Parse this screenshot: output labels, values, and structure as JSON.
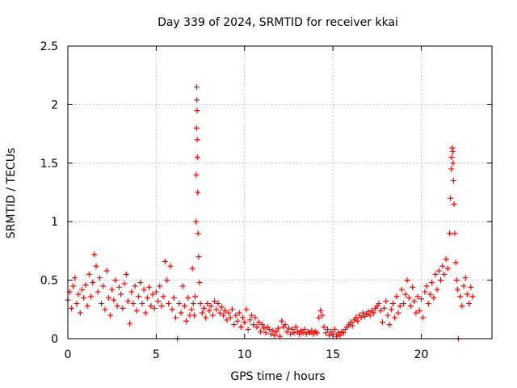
{
  "chart_data": {
    "type": "scatter",
    "title": "Day 339 of 2024, SRMTID for receiver kkai",
    "xlabel": "GPS time / hours",
    "ylabel": "SRMTID / TECUs",
    "xlim": [
      0,
      24
    ],
    "ylim": [
      0,
      2.5
    ],
    "xticks": [
      0,
      5,
      10,
      15,
      20
    ],
    "yticks": [
      0,
      0.5,
      1,
      1.5,
      2,
      2.5
    ],
    "xtick_labels": [
      "0",
      "5",
      "10",
      "15",
      "20"
    ],
    "ytick_labels": [
      "0",
      "0.5",
      "1",
      "1.5",
      "2",
      "2.5"
    ],
    "grid": true,
    "marker": "+",
    "series": [
      {
        "name": "kkai",
        "color": "#ff0000",
        "points": [
          [
            0.0,
            0.33
          ],
          [
            0.1,
            0.4
          ],
          [
            0.2,
            0.26
          ],
          [
            0.3,
            0.45
          ],
          [
            0.4,
            0.52
          ],
          [
            0.5,
            0.3
          ],
          [
            0.6,
            0.38
          ],
          [
            0.7,
            0.22
          ],
          [
            0.8,
            0.42
          ],
          [
            0.9,
            0.35
          ],
          [
            1.0,
            0.46
          ],
          [
            1.1,
            0.28
          ],
          [
            1.2,
            0.55
          ],
          [
            1.3,
            0.36
          ],
          [
            1.4,
            0.48
          ],
          [
            1.5,
            0.72
          ],
          [
            1.6,
            0.62
          ],
          [
            1.7,
            0.4
          ],
          [
            1.8,
            0.52
          ],
          [
            1.9,
            0.3
          ],
          [
            2.0,
            0.45
          ],
          [
            2.1,
            0.25
          ],
          [
            2.2,
            0.58
          ],
          [
            2.3,
            0.35
          ],
          [
            2.4,
            0.2
          ],
          [
            2.5,
            0.42
          ],
          [
            2.6,
            0.33
          ],
          [
            2.7,
            0.5
          ],
          [
            2.8,
            0.28
          ],
          [
            2.9,
            0.44
          ],
          [
            3.0,
            0.38
          ],
          [
            3.1,
            0.26
          ],
          [
            3.2,
            0.47
          ],
          [
            3.3,
            0.55
          ],
          [
            3.4,
            0.32
          ],
          [
            3.5,
            0.13
          ],
          [
            3.6,
            0.4
          ],
          [
            3.7,
            0.3
          ],
          [
            3.8,
            0.45
          ],
          [
            3.9,
            0.24
          ],
          [
            4.0,
            0.36
          ],
          [
            4.1,
            0.48
          ],
          [
            4.2,
            0.3
          ],
          [
            4.3,
            0.42
          ],
          [
            4.4,
            0.22
          ],
          [
            4.5,
            0.35
          ],
          [
            4.6,
            0.44
          ],
          [
            4.7,
            0.28
          ],
          [
            4.8,
            0.38
          ],
          [
            4.9,
            0.26
          ],
          [
            5.0,
            0.4
          ],
          [
            5.1,
            0.32
          ],
          [
            5.2,
            0.45
          ],
          [
            5.3,
            0.28
          ],
          [
            5.4,
            0.36
          ],
          [
            5.5,
            0.66
          ],
          [
            5.6,
            0.5
          ],
          [
            5.7,
            0.3
          ],
          [
            5.8,
            0.62
          ],
          [
            5.9,
            0.25
          ],
          [
            6.0,
            0.35
          ],
          [
            6.1,
            0.18
          ],
          [
            6.2,
            0.0
          ],
          [
            6.3,
            0.3
          ],
          [
            6.4,
            0.22
          ],
          [
            6.5,
            0.45
          ],
          [
            6.6,
            0.28
          ],
          [
            6.7,
            0.15
          ],
          [
            6.8,
            0.35
          ],
          [
            6.9,
            0.2
          ],
          [
            7.0,
            0.25
          ],
          [
            7.05,
            0.6
          ],
          [
            7.1,
            0.3
          ],
          [
            7.15,
            0.2
          ],
          [
            7.2,
            0.36
          ],
          [
            7.25,
            1.0
          ],
          [
            7.27,
            1.4
          ],
          [
            7.28,
            1.8
          ],
          [
            7.29,
            2.15
          ],
          [
            7.3,
            2.04
          ],
          [
            7.31,
            1.95
          ],
          [
            7.32,
            1.7
          ],
          [
            7.33,
            1.55
          ],
          [
            7.35,
            1.25
          ],
          [
            7.37,
            0.9
          ],
          [
            7.4,
            0.7
          ],
          [
            7.45,
            0.48
          ],
          [
            7.5,
            0.3
          ],
          [
            7.6,
            0.22
          ],
          [
            7.7,
            0.26
          ],
          [
            7.8,
            0.18
          ],
          [
            7.9,
            0.3
          ],
          [
            8.0,
            0.24
          ],
          [
            8.1,
            0.28
          ],
          [
            8.2,
            0.2
          ],
          [
            8.3,
            0.32
          ],
          [
            8.4,
            0.25
          ],
          [
            8.5,
            0.3
          ],
          [
            8.6,
            0.22
          ],
          [
            8.7,
            0.27
          ],
          [
            8.8,
            0.2
          ],
          [
            8.9,
            0.24
          ],
          [
            9.0,
            0.16
          ],
          [
            9.1,
            0.22
          ],
          [
            9.2,
            0.18
          ],
          [
            9.3,
            0.25
          ],
          [
            9.4,
            0.12
          ],
          [
            9.5,
            0.2
          ],
          [
            9.6,
            0.15
          ],
          [
            9.7,
            0.22
          ],
          [
            9.8,
            0.1
          ],
          [
            9.9,
            0.18
          ],
          [
            10.0,
            0.14
          ],
          [
            10.1,
            0.25
          ],
          [
            10.2,
            0.08
          ],
          [
            10.3,
            0.16
          ],
          [
            10.4,
            0.2
          ],
          [
            10.5,
            0.12
          ],
          [
            10.6,
            0.18
          ],
          [
            10.7,
            0.1
          ],
          [
            10.8,
            0.14
          ],
          [
            10.9,
            0.06
          ],
          [
            11.0,
            0.12
          ],
          [
            11.1,
            0.09
          ],
          [
            11.2,
            0.05
          ],
          [
            11.3,
            0.1
          ],
          [
            11.4,
            0.08
          ],
          [
            11.5,
            0.04
          ],
          [
            11.6,
            0.07
          ],
          [
            11.7,
            0.03
          ],
          [
            11.8,
            0.06
          ],
          [
            11.9,
            0.09
          ],
          [
            12.0,
            0.02
          ],
          [
            12.1,
            0.15
          ],
          [
            12.2,
            0.1
          ],
          [
            12.3,
            0.12
          ],
          [
            12.4,
            0.06
          ],
          [
            12.5,
            0.09
          ],
          [
            12.6,
            0.04
          ],
          [
            12.7,
            0.08
          ],
          [
            12.8,
            0.05
          ],
          [
            12.9,
            0.1
          ],
          [
            13.0,
            0.06
          ],
          [
            13.1,
            0.04
          ],
          [
            13.2,
            0.07
          ],
          [
            13.3,
            0.05
          ],
          [
            13.4,
            0.08
          ],
          [
            13.5,
            0.04
          ],
          [
            13.6,
            0.06
          ],
          [
            13.7,
            0.05
          ],
          [
            13.8,
            0.07
          ],
          [
            13.9,
            0.04
          ],
          [
            14.0,
            0.06
          ],
          [
            14.1,
            0.05
          ],
          [
            14.2,
            0.18
          ],
          [
            14.3,
            0.24
          ],
          [
            14.4,
            0.2
          ],
          [
            14.5,
            0.1
          ],
          [
            14.6,
            0.05
          ],
          [
            14.7,
            0.08
          ],
          [
            14.8,
            0.03
          ],
          [
            14.9,
            0.06
          ],
          [
            15.0,
            0.04
          ],
          [
            15.1,
            0.08
          ],
          [
            15.2,
            0.02
          ],
          [
            15.3,
            0.05
          ],
          [
            15.4,
            0.03
          ],
          [
            15.5,
            0.06
          ],
          [
            15.6,
            0.05
          ],
          [
            15.7,
            0.08
          ],
          [
            15.8,
            0.1
          ],
          [
            15.9,
            0.12
          ],
          [
            16.0,
            0.14
          ],
          [
            16.1,
            0.11
          ],
          [
            16.2,
            0.16
          ],
          [
            16.3,
            0.18
          ],
          [
            16.4,
            0.15
          ],
          [
            16.5,
            0.2
          ],
          [
            16.6,
            0.18
          ],
          [
            16.7,
            0.22
          ],
          [
            16.8,
            0.19
          ],
          [
            16.9,
            0.21
          ],
          [
            17.0,
            0.23
          ],
          [
            17.1,
            0.2
          ],
          [
            17.2,
            0.24
          ],
          [
            17.3,
            0.22
          ],
          [
            17.4,
            0.26
          ],
          [
            17.5,
            0.28
          ],
          [
            17.6,
            0.3
          ],
          [
            17.7,
            0.24
          ],
          [
            17.8,
            0.14
          ],
          [
            17.9,
            0.26
          ],
          [
            18.0,
            0.32
          ],
          [
            18.1,
            0.2
          ],
          [
            18.2,
            0.12
          ],
          [
            18.3,
            0.25
          ],
          [
            18.4,
            0.3
          ],
          [
            18.5,
            0.18
          ],
          [
            18.6,
            0.36
          ],
          [
            18.7,
            0.22
          ],
          [
            18.8,
            0.28
          ],
          [
            18.9,
            0.42
          ],
          [
            19.0,
            0.3
          ],
          [
            19.1,
            0.38
          ],
          [
            19.2,
            0.5
          ],
          [
            19.3,
            0.35
          ],
          [
            19.4,
            0.28
          ],
          [
            19.5,
            0.44
          ],
          [
            19.6,
            0.32
          ],
          [
            19.7,
            0.22
          ],
          [
            19.8,
            0.36
          ],
          [
            19.9,
            0.24
          ],
          [
            20.0,
            0.34
          ],
          [
            20.1,
            0.18
          ],
          [
            20.2,
            0.4
          ],
          [
            20.3,
            0.45
          ],
          [
            20.4,
            0.3
          ],
          [
            20.5,
            0.38
          ],
          [
            20.6,
            0.48
          ],
          [
            20.7,
            0.35
          ],
          [
            20.8,
            0.55
          ],
          [
            20.9,
            0.42
          ],
          [
            21.0,
            0.58
          ],
          [
            21.1,
            0.5
          ],
          [
            21.2,
            0.62
          ],
          [
            21.3,
            0.55
          ],
          [
            21.4,
            0.68
          ],
          [
            21.5,
            0.6
          ],
          [
            21.6,
            0.9
          ],
          [
            21.65,
            1.2
          ],
          [
            21.7,
            1.45
          ],
          [
            21.72,
            1.55
          ],
          [
            21.75,
            1.63
          ],
          [
            21.78,
            1.6
          ],
          [
            21.8,
            1.5
          ],
          [
            21.82,
            1.35
          ],
          [
            21.85,
            1.15
          ],
          [
            21.9,
            0.9
          ],
          [
            21.95,
            0.65
          ],
          [
            22.0,
            0.5
          ],
          [
            22.05,
            0.42
          ],
          [
            22.1,
            0.0
          ],
          [
            22.2,
            0.36
          ],
          [
            22.3,
            0.28
          ],
          [
            22.4,
            0.45
          ],
          [
            22.5,
            0.52
          ],
          [
            22.6,
            0.38
          ],
          [
            22.7,
            0.3
          ],
          [
            22.8,
            0.44
          ],
          [
            22.9,
            0.36
          ]
        ]
      }
    ]
  }
}
